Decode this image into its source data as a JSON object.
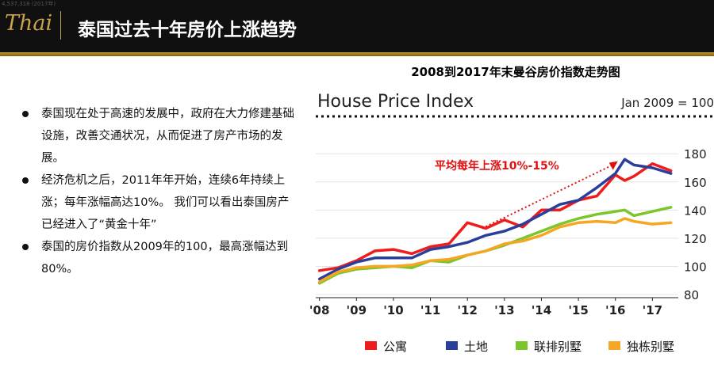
{
  "header": {
    "logo_text": "Thai",
    "title": "泰国过去十年房价上涨趋势",
    "small_text": "4,537,318 (2017年)"
  },
  "bullets": [
    "泰国现在处于高速的发展中，政府在大力修建基础设施，改善交通状况，从而促进了房产市场的发展。",
    "经济危机之后，2011年年开始，连续6年持续上涨；每年涨幅高达10%。 我们可以看出泰国房产已经进入了“黄金十年”",
    "泰国的房价指数从2009年的100，最高涨幅达到80%。"
  ],
  "chart_caption": "2008到2017年末曼谷房价指数走势图",
  "chart_data": {
    "type": "line",
    "title": "House Price Index",
    "note": "Jan 2009 = 100",
    "annotation": "平均每年上涨10%-15%",
    "x_tick_labels": [
      "'08",
      "'09",
      "'10",
      "'11",
      "'12",
      "'13",
      "'14",
      "'15",
      "'16",
      "'17"
    ],
    "x_ticks": [
      2008,
      2009,
      2010,
      2011,
      2012,
      2013,
      2014,
      2015,
      2016,
      2017
    ],
    "y_ticks": [
      80,
      100,
      120,
      140,
      160,
      180
    ],
    "ylim": [
      80,
      188
    ],
    "xlim": [
      2007.9,
      2017.7
    ],
    "legend_position": "bottom",
    "colors": {
      "red": "#ee1c1c",
      "blue": "#2a3f9a",
      "green": "#7cc52b",
      "orange": "#f5a623",
      "arrow": "#e01010"
    },
    "x": [
      2008.0,
      2008.5,
      2009.0,
      2009.5,
      2010.0,
      2010.5,
      2011.0,
      2011.5,
      2012.0,
      2012.5,
      2013.0,
      2013.5,
      2014.0,
      2014.5,
      2015.0,
      2015.5,
      2016.0,
      2016.25,
      2016.5,
      2017.0,
      2017.5
    ],
    "series": [
      {
        "name": "公寓",
        "color": "#ee1c1c",
        "values": [
          97,
          99,
          104,
          111,
          112,
          109,
          114,
          116,
          131,
          127,
          133,
          128,
          140,
          140,
          147,
          150,
          165,
          161,
          164,
          173,
          168
        ]
      },
      {
        "name": "土地",
        "color": "#2a3f9a",
        "values": [
          91,
          98,
          103,
          106,
          106,
          106,
          112,
          114,
          117,
          122,
          125,
          130,
          137,
          144,
          147,
          156,
          166,
          176,
          172,
          170,
          166
        ]
      },
      {
        "name": "联排别墅",
        "color": "#7cc52b",
        "values": [
          88,
          95,
          98,
          99,
          100,
          99,
          104,
          103,
          108,
          111,
          115,
          120,
          125,
          130,
          134,
          137,
          139,
          140,
          136,
          139,
          142
        ]
      },
      {
        "name": "独栋别墅",
        "color": "#f5a623",
        "values": [
          89,
          96,
          99,
          100,
          100,
          101,
          104,
          105,
          108,
          111,
          116,
          118,
          122,
          128,
          131,
          132,
          131,
          134,
          132,
          130,
          131
        ]
      }
    ]
  }
}
